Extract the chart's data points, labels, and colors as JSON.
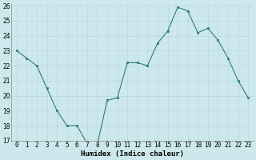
{
  "x": [
    0,
    1,
    2,
    3,
    4,
    5,
    6,
    7,
    8,
    9,
    10,
    11,
    12,
    13,
    14,
    15,
    16,
    17,
    18,
    19,
    20,
    21,
    22,
    23
  ],
  "y": [
    23.0,
    22.5,
    22.0,
    20.5,
    19.0,
    18.0,
    18.0,
    16.8,
    16.7,
    19.7,
    19.85,
    22.2,
    22.2,
    22.0,
    23.5,
    24.3,
    25.9,
    25.65,
    24.2,
    24.5,
    23.7,
    22.5,
    21.0,
    19.85
  ],
  "line_color": "#2e7d6e",
  "marker_color": "#2e7d6e",
  "bg_color": "#cce8ec",
  "grid_color": "#b8d8dc",
  "xlabel": "Humidex (Indice chaleur)",
  "ylim": [
    17,
    26
  ],
  "xlim": [
    -0.5,
    23.5
  ],
  "yticks": [
    17,
    18,
    19,
    20,
    21,
    22,
    23,
    24,
    25,
    26
  ],
  "xticks": [
    0,
    1,
    2,
    3,
    4,
    5,
    6,
    7,
    8,
    9,
    10,
    11,
    12,
    13,
    14,
    15,
    16,
    17,
    18,
    19,
    20,
    21,
    22,
    23
  ],
  "xtick_labels": [
    "0",
    "1",
    "2",
    "3",
    "4",
    "5",
    "6",
    "7",
    "8",
    "9",
    "10",
    "11",
    "12",
    "13",
    "14",
    "15",
    "16",
    "17",
    "18",
    "19",
    "20",
    "21",
    "22",
    "23"
  ],
  "xlabel_fontsize": 6.5,
  "tick_fontsize": 5.5
}
